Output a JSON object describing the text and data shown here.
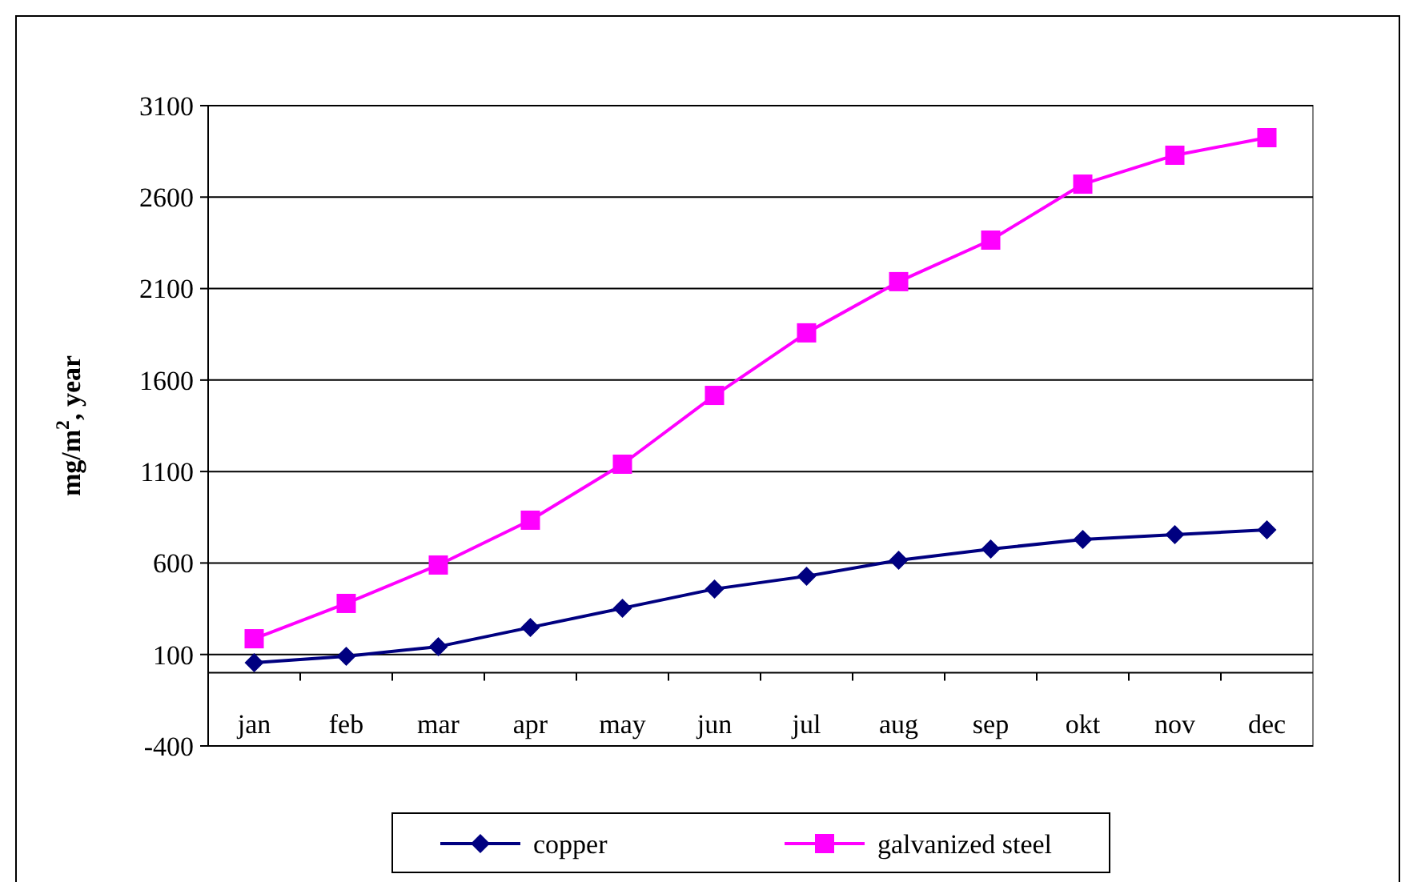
{
  "chart_data": {
    "type": "line",
    "ylabel": "mg/m$^{2}$, year",
    "categories": [
      "jan",
      "feb",
      "mar",
      "apr",
      "may",
      "jun",
      "jul",
      "aug",
      "sep",
      "okt",
      "nov",
      "dec"
    ],
    "series": [
      {
        "name": "copper",
        "color": "#000080",
        "marker": "diamond",
        "values": [
          55,
          90,
          143,
          248,
          353,
          458,
          528,
          615,
          676,
          729,
          755,
          781
        ]
      },
      {
        "name": "galvanized steel",
        "color": "#ff00ff",
        "marker": "square",
        "values": [
          186,
          379,
          589,
          834,
          1140,
          1516,
          1858,
          2138,
          2365,
          2671,
          2829,
          2925
        ]
      }
    ],
    "ylim": [
      -400,
      3100
    ],
    "yticks": [
      -400,
      100,
      600,
      1100,
      1600,
      2100,
      2600,
      3100
    ],
    "grid": "y",
    "legend": "bottom"
  }
}
